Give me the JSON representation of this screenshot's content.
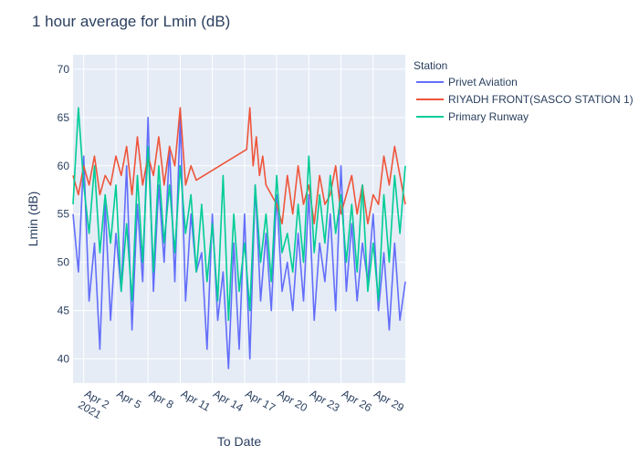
{
  "chart_data": {
    "type": "line",
    "title": "1 hour average for Lmin (dB)",
    "xlabel": "To Date",
    "ylabel": "Lmin (dB)",
    "x_range_days": [
      0,
      31
    ],
    "x_ticks": [
      {
        "day": 1,
        "label": "Apr 2",
        "sub": "2021"
      },
      {
        "day": 4,
        "label": "Apr 5"
      },
      {
        "day": 7,
        "label": "Apr 8"
      },
      {
        "day": 10,
        "label": "Apr 11"
      },
      {
        "day": 13,
        "label": "Apr 14"
      },
      {
        "day": 16,
        "label": "Apr 17"
      },
      {
        "day": 19,
        "label": "Apr 20"
      },
      {
        "day": 22,
        "label": "Apr 23"
      },
      {
        "day": 25,
        "label": "Apr 26"
      },
      {
        "day": 28,
        "label": "Apr 29"
      }
    ],
    "ylim": [
      37.5,
      71.5
    ],
    "y_ticks": [
      40,
      45,
      50,
      55,
      60,
      65,
      70
    ],
    "grid": true,
    "legend": {
      "title": "Station",
      "placement": "right"
    },
    "series": [
      {
        "name": "Privet Aviation",
        "color": "#636efa",
        "x": [
          0,
          0.5,
          1,
          1.5,
          2,
          2.5,
          3,
          3.5,
          4,
          4.5,
          5,
          5.5,
          6,
          6.5,
          7,
          7.5,
          8,
          8.5,
          9,
          9.5,
          10,
          10.5,
          11,
          11.5,
          12,
          12.5,
          13,
          13.5,
          14,
          14.5,
          15,
          15.5,
          16,
          16.5,
          17,
          17.5,
          18,
          18.5,
          19,
          19.5,
          20,
          20.5,
          21,
          21.5,
          22,
          22.5,
          23,
          23.5,
          24,
          24.5,
          25,
          25.5,
          26,
          26.5,
          27,
          27.5,
          28,
          28.5,
          29,
          29.5,
          30,
          30.5,
          31
        ],
        "values": [
          55,
          49,
          61,
          46,
          52,
          41,
          56,
          44,
          53,
          47,
          60,
          43,
          56,
          48,
          65,
          47,
          58,
          50,
          62,
          48,
          65,
          46,
          55,
          49,
          51,
          41,
          55,
          44,
          49,
          39,
          52,
          41,
          55,
          40,
          58,
          46,
          53,
          45,
          57,
          47,
          50,
          45,
          53,
          46,
          57,
          44,
          52,
          48,
          55,
          45,
          60,
          47,
          54,
          46,
          52,
          48,
          55,
          45,
          51,
          43,
          52,
          44,
          48
        ]
      },
      {
        "name": "RIYADH FRONT(SASCO STATION 1)",
        "color": "#ef553b",
        "x": [
          0,
          0.5,
          1,
          1.5,
          2,
          2.5,
          3,
          3.5,
          4,
          4.5,
          5,
          5.5,
          6,
          6.5,
          7,
          7.5,
          8,
          8.5,
          9,
          9.5,
          10,
          10.5,
          11,
          11.5,
          16.2,
          16.5,
          16.8,
          17.1,
          17.4,
          17.7,
          18,
          19,
          19.5,
          20,
          20.5,
          21,
          21.5,
          22,
          22.5,
          23,
          23.5,
          24,
          24.5,
          25,
          25.5,
          26,
          26.5,
          27,
          27.5,
          28,
          28.5,
          29,
          29.5,
          30,
          30.5,
          31
        ],
        "values": [
          59,
          57,
          60,
          58,
          61,
          57,
          59,
          58,
          61,
          59,
          62,
          57,
          63,
          58,
          61,
          59,
          63,
          58,
          62,
          60,
          66,
          58,
          60,
          58.5,
          61.7,
          66,
          60,
          63,
          59,
          61,
          58,
          56,
          54,
          59,
          55,
          60,
          56,
          58,
          54,
          59,
          56,
          57,
          60,
          55,
          57,
          59,
          55,
          58,
          54,
          57,
          56,
          61,
          58,
          62,
          59,
          56
        ]
      },
      {
        "name": "Primary Runway",
        "color": "#00cc96",
        "x": [
          0,
          0.5,
          1,
          1.5,
          2,
          2.5,
          3,
          3.5,
          4,
          4.5,
          5,
          5.5,
          6,
          6.5,
          7,
          7.5,
          8,
          8.5,
          9,
          9.5,
          10,
          10.5,
          11,
          11.5,
          12,
          12.5,
          13,
          13.5,
          14,
          14.5,
          15,
          15.5,
          16,
          16.5,
          17,
          17.5,
          18,
          18.5,
          19,
          19.5,
          20,
          20.5,
          21,
          21.5,
          22,
          22.5,
          23,
          23.5,
          24,
          24.5,
          25,
          25.5,
          26,
          26.5,
          27,
          27.5,
          28,
          28.5,
          29,
          29.5,
          30,
          30.5,
          31
        ],
        "values": [
          56,
          66,
          58,
          53,
          60,
          51,
          57,
          52,
          58,
          47,
          54,
          46,
          59,
          50,
          62,
          49,
          60,
          52,
          58,
          51,
          60,
          53,
          57,
          49,
          56,
          48,
          54,
          46,
          59,
          44,
          55,
          47,
          52,
          45,
          58,
          50,
          55,
          48,
          59,
          51,
          53,
          49,
          56,
          50,
          61,
          51,
          57,
          52,
          59,
          53,
          57,
          50,
          56,
          49,
          58,
          47,
          52,
          46,
          57,
          50,
          59,
          53,
          60
        ]
      }
    ]
  }
}
